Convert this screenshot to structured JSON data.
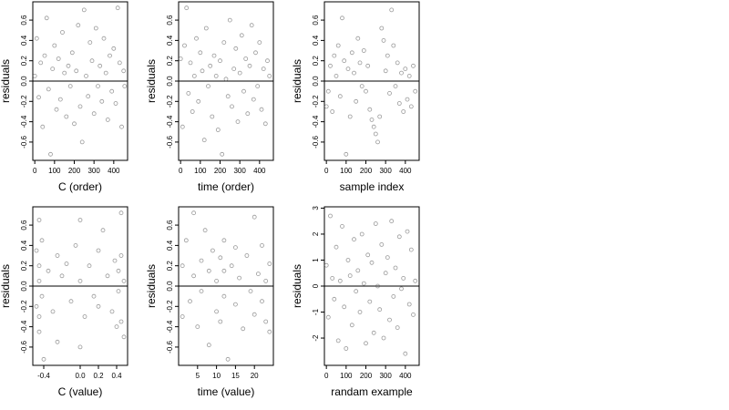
{
  "chart_data": [
    {
      "type": "scatter",
      "xlabel": "C (order)",
      "ylabel": "residuals",
      "xlim": [
        -10,
        470
      ],
      "ylim": [
        -0.78,
        0.78
      ],
      "xticks": [
        0,
        100,
        200,
        300,
        400
      ],
      "xtick_labels": [
        "0",
        "100",
        "200",
        "300",
        "400"
      ],
      "yticks": [
        -0.6,
        -0.4,
        -0.2,
        0.0,
        0.2,
        0.4,
        0.6
      ],
      "ytick_labels": [
        "-0.6",
        "-0.4",
        "-0.2",
        "0.0",
        "0.2",
        "0.4",
        "0.6"
      ],
      "reference_line": 0,
      "points": [
        [
          0,
          0.05
        ],
        [
          10,
          0.42
        ],
        [
          20,
          -0.16
        ],
        [
          30,
          0.18
        ],
        [
          40,
          -0.45
        ],
        [
          50,
          0.25
        ],
        [
          60,
          0.62
        ],
        [
          70,
          -0.08
        ],
        [
          80,
          -0.72
        ],
        [
          90,
          0.12
        ],
        [
          100,
          0.35
        ],
        [
          110,
          -0.28
        ],
        [
          120,
          0.22
        ],
        [
          130,
          -0.18
        ],
        [
          140,
          0.48
        ],
        [
          150,
          0.08
        ],
        [
          160,
          -0.35
        ],
        [
          170,
          0.15
        ],
        [
          180,
          -0.05
        ],
        [
          190,
          0.28
        ],
        [
          200,
          -0.42
        ],
        [
          210,
          0.1
        ],
        [
          220,
          0.55
        ],
        [
          230,
          -0.25
        ],
        [
          240,
          -0.6
        ],
        [
          250,
          0.7
        ],
        [
          260,
          0.05
        ],
        [
          270,
          -0.15
        ],
        [
          280,
          0.38
        ],
        [
          290,
          0.2
        ],
        [
          300,
          -0.32
        ],
        [
          310,
          0.52
        ],
        [
          320,
          -0.05
        ],
        [
          330,
          0.15
        ],
        [
          340,
          -0.2
        ],
        [
          350,
          0.42
        ],
        [
          360,
          0.08
        ],
        [
          370,
          -0.38
        ],
        [
          380,
          0.25
        ],
        [
          390,
          -0.1
        ],
        [
          400,
          0.32
        ],
        [
          410,
          -0.22
        ],
        [
          420,
          0.72
        ],
        [
          430,
          0.18
        ],
        [
          440,
          -0.45
        ],
        [
          450,
          0.1
        ],
        [
          455,
          -0.05
        ]
      ]
    },
    {
      "type": "scatter",
      "xlabel": "time (order)",
      "ylabel": "residuals",
      "xlim": [
        -10,
        470
      ],
      "ylim": [
        -0.78,
        0.78
      ],
      "xticks": [
        0,
        100,
        200,
        300,
        400
      ],
      "xtick_labels": [
        "0",
        "100",
        "200",
        "300",
        "400"
      ],
      "yticks": [
        -0.6,
        -0.4,
        -0.2,
        0.0,
        0.2,
        0.4,
        0.6
      ],
      "ytick_labels": [
        "-0.6",
        "-0.4",
        "-0.2",
        "0.0",
        "0.2",
        "0.4",
        "0.6"
      ],
      "reference_line": 0,
      "points": [
        [
          0,
          0.22
        ],
        [
          10,
          -0.45
        ],
        [
          20,
          0.35
        ],
        [
          30,
          0.72
        ],
        [
          40,
          -0.12
        ],
        [
          50,
          0.18
        ],
        [
          60,
          -0.3
        ],
        [
          70,
          0.05
        ],
        [
          80,
          0.42
        ],
        [
          90,
          -0.2
        ],
        [
          100,
          0.28
        ],
        [
          110,
          0.1
        ],
        [
          120,
          -0.58
        ],
        [
          130,
          0.52
        ],
        [
          140,
          -0.05
        ],
        [
          150,
          0.15
        ],
        [
          160,
          -0.35
        ],
        [
          170,
          0.25
        ],
        [
          180,
          0.05
        ],
        [
          190,
          -0.48
        ],
        [
          200,
          0.2
        ],
        [
          210,
          -0.72
        ],
        [
          220,
          0.38
        ],
        [
          230,
          0.02
        ],
        [
          240,
          -0.15
        ],
        [
          250,
          0.6
        ],
        [
          260,
          -0.25
        ],
        [
          270,
          0.12
        ],
        [
          280,
          0.32
        ],
        [
          290,
          -0.4
        ],
        [
          300,
          0.08
        ],
        [
          310,
          0.45
        ],
        [
          320,
          -0.1
        ],
        [
          330,
          0.22
        ],
        [
          340,
          -0.32
        ],
        [
          350,
          0.15
        ],
        [
          360,
          0.55
        ],
        [
          370,
          -0.18
        ],
        [
          380,
          0.28
        ],
        [
          390,
          -0.05
        ],
        [
          400,
          0.38
        ],
        [
          410,
          -0.28
        ],
        [
          420,
          0.12
        ],
        [
          430,
          -0.42
        ],
        [
          440,
          0.2
        ],
        [
          450,
          0.05
        ]
      ]
    },
    {
      "type": "scatter",
      "xlabel": "sample index",
      "ylabel": "residuals",
      "xlim": [
        -10,
        470
      ],
      "ylim": [
        -0.78,
        0.78
      ],
      "xticks": [
        0,
        100,
        200,
        300,
        400
      ],
      "xtick_labels": [
        "0",
        "100",
        "200",
        "300",
        "400"
      ],
      "yticks": [
        -0.6,
        -0.4,
        -0.2,
        0.0,
        0.2,
        0.4,
        0.6
      ],
      "ytick_labels": [
        "-0.6",
        "-0.4",
        "-0.2",
        "0.0",
        "0.2",
        "0.4",
        "0.6"
      ],
      "reference_line": 0,
      "points": [
        [
          0,
          -0.25
        ],
        [
          10,
          -0.1
        ],
        [
          20,
          0.15
        ],
        [
          30,
          -0.3
        ],
        [
          40,
          0.25
        ],
        [
          50,
          0.05
        ],
        [
          60,
          0.35
        ],
        [
          70,
          -0.15
        ],
        [
          80,
          0.62
        ],
        [
          90,
          0.2
        ],
        [
          100,
          -0.72
        ],
        [
          110,
          0.12
        ],
        [
          120,
          -0.35
        ],
        [
          130,
          0.28
        ],
        [
          140,
          0.08
        ],
        [
          150,
          -0.2
        ],
        [
          160,
          0.42
        ],
        [
          170,
          0.18
        ],
        [
          180,
          -0.05
        ],
        [
          190,
          0.3
        ],
        [
          200,
          -0.1
        ],
        [
          210,
          0.15
        ],
        [
          220,
          -0.28
        ],
        [
          230,
          -0.38
        ],
        [
          240,
          -0.45
        ],
        [
          250,
          -0.52
        ],
        [
          260,
          -0.6
        ],
        [
          270,
          -0.35
        ],
        [
          280,
          0.52
        ],
        [
          290,
          0.4
        ],
        [
          300,
          0.1
        ],
        [
          310,
          0.25
        ],
        [
          320,
          -0.12
        ],
        [
          330,
          0.7
        ],
        [
          340,
          0.35
        ],
        [
          350,
          -0.05
        ],
        [
          360,
          0.18
        ],
        [
          370,
          -0.22
        ],
        [
          380,
          0.08
        ],
        [
          390,
          -0.3
        ],
        [
          400,
          0.12
        ],
        [
          410,
          -0.18
        ],
        [
          420,
          0.05
        ],
        [
          430,
          -0.25
        ],
        [
          440,
          0.15
        ],
        [
          450,
          -0.1
        ]
      ]
    },
    {
      "type": "scatter",
      "xlabel": "C (value)",
      "ylabel": "residuals",
      "xlim": [
        -0.52,
        0.52
      ],
      "ylim": [
        -0.78,
        0.78
      ],
      "xticks": [
        -0.4,
        0.0,
        0.2,
        0.4
      ],
      "xtick_labels": [
        "-0.4",
        "0.0",
        "0.2",
        "0.4"
      ],
      "yticks": [
        -0.6,
        -0.4,
        -0.2,
        0.0,
        0.2,
        0.4,
        0.6
      ],
      "ytick_labels": [
        "-0.6",
        "-0.4",
        "-0.2",
        "0.0",
        "0.2",
        "0.4",
        "0.6"
      ],
      "reference_line": 0,
      "points": [
        [
          -0.48,
          0.35
        ],
        [
          -0.48,
          -0.2
        ],
        [
          -0.45,
          0.65
        ],
        [
          -0.45,
          -0.45
        ],
        [
          -0.45,
          0.2
        ],
        [
          -0.45,
          0.05
        ],
        [
          -0.45,
          -0.3
        ],
        [
          -0.42,
          0.45
        ],
        [
          -0.42,
          -0.1
        ],
        [
          -0.4,
          -0.72
        ],
        [
          -0.35,
          0.15
        ],
        [
          -0.3,
          -0.25
        ],
        [
          -0.25,
          0.3
        ],
        [
          -0.25,
          -0.55
        ],
        [
          -0.2,
          0.1
        ],
        [
          -0.15,
          0.22
        ],
        [
          -0.1,
          -0.15
        ],
        [
          -0.05,
          0.4
        ],
        [
          0.0,
          0.65
        ],
        [
          0.0,
          -0.6
        ],
        [
          0.0,
          0.05
        ],
        [
          0.05,
          -0.3
        ],
        [
          0.1,
          0.2
        ],
        [
          0.15,
          -0.1
        ],
        [
          0.2,
          0.35
        ],
        [
          0.2,
          -0.2
        ],
        [
          0.25,
          0.55
        ],
        [
          0.3,
          0.1
        ],
        [
          0.35,
          -0.25
        ],
        [
          0.38,
          0.25
        ],
        [
          0.4,
          -0.4
        ],
        [
          0.42,
          0.15
        ],
        [
          0.42,
          -0.05
        ],
        [
          0.45,
          0.72
        ],
        [
          0.45,
          0.3
        ],
        [
          0.45,
          -0.35
        ],
        [
          0.48,
          0.05
        ],
        [
          0.48,
          -0.5
        ]
      ]
    },
    {
      "type": "scatter",
      "xlabel": "time (value)",
      "ylabel": "residuals",
      "xlim": [
        0,
        25
      ],
      "ylim": [
        -0.78,
        0.78
      ],
      "xticks": [
        5,
        10,
        15,
        20
      ],
      "xtick_labels": [
        "5",
        "10",
        "15",
        "20"
      ],
      "yticks": [
        -0.6,
        -0.4,
        -0.2,
        0.0,
        0.2,
        0.4,
        0.6
      ],
      "ytick_labels": [
        "-0.6",
        "-0.4",
        "-0.2",
        "0.0",
        "0.2",
        "0.4",
        "0.6"
      ],
      "reference_line": 0,
      "points": [
        [
          1,
          0.2
        ],
        [
          1,
          -0.3
        ],
        [
          2,
          0.45
        ],
        [
          3,
          -0.15
        ],
        [
          4,
          0.72
        ],
        [
          4,
          0.1
        ],
        [
          5,
          -0.4
        ],
        [
          6,
          0.25
        ],
        [
          6,
          -0.05
        ],
        [
          7,
          0.55
        ],
        [
          8,
          -0.58
        ],
        [
          8,
          0.15
        ],
        [
          9,
          0.35
        ],
        [
          10,
          -0.25
        ],
        [
          10,
          0.05
        ],
        [
          11,
          0.28
        ],
        [
          11,
          -0.35
        ],
        [
          12,
          0.15
        ],
        [
          12,
          -0.1
        ],
        [
          12,
          0.45
        ],
        [
          13,
          -0.72
        ],
        [
          14,
          0.2
        ],
        [
          15,
          -0.18
        ],
        [
          15,
          0.38
        ],
        [
          16,
          0.08
        ],
        [
          17,
          -0.42
        ],
        [
          18,
          0.3
        ],
        [
          19,
          -0.05
        ],
        [
          20,
          0.68
        ],
        [
          20,
          -0.28
        ],
        [
          21,
          0.12
        ],
        [
          22,
          -0.15
        ],
        [
          22,
          0.4
        ],
        [
          23,
          0.05
        ],
        [
          23,
          -0.35
        ],
        [
          24,
          0.22
        ],
        [
          24,
          -0.45
        ]
      ]
    },
    {
      "type": "scatter",
      "xlabel": "randam example",
      "ylabel": "residuals",
      "xlim": [
        -10,
        470
      ],
      "ylim": [
        -3.05,
        3.05
      ],
      "xticks": [
        0,
        100,
        200,
        300,
        400
      ],
      "xtick_labels": [
        "0",
        "100",
        "200",
        "300",
        "400"
      ],
      "yticks": [
        -2,
        -1,
        0,
        1,
        2,
        3
      ],
      "ytick_labels": [
        "-2",
        "-1",
        "0",
        "1",
        "2",
        "3"
      ],
      "reference_line": 0,
      "points": [
        [
          0,
          0.8
        ],
        [
          10,
          -1.2
        ],
        [
          20,
          2.7
        ],
        [
          30,
          0.3
        ],
        [
          40,
          -0.5
        ],
        [
          50,
          1.5
        ],
        [
          60,
          -2.1
        ],
        [
          70,
          0.2
        ],
        [
          80,
          2.3
        ],
        [
          90,
          -0.8
        ],
        [
          100,
          -2.4
        ],
        [
          110,
          1.0
        ],
        [
          120,
          0.4
        ],
        [
          130,
          -1.5
        ],
        [
          140,
          1.8
        ],
        [
          150,
          -0.2
        ],
        [
          160,
          0.6
        ],
        [
          170,
          -1.0
        ],
        [
          180,
          2.0
        ],
        [
          190,
          0.1
        ],
        [
          200,
          -2.2
        ],
        [
          210,
          1.2
        ],
        [
          220,
          -0.6
        ],
        [
          230,
          0.9
        ],
        [
          240,
          -1.8
        ],
        [
          250,
          2.4
        ],
        [
          260,
          0.0
        ],
        [
          270,
          -0.9
        ],
        [
          280,
          1.6
        ],
        [
          290,
          -2.0
        ],
        [
          300,
          0.5
        ],
        [
          310,
          1.1
        ],
        [
          320,
          -1.3
        ],
        [
          330,
          2.5
        ],
        [
          340,
          -0.4
        ],
        [
          350,
          0.7
        ],
        [
          360,
          -1.6
        ],
        [
          370,
          1.9
        ],
        [
          380,
          -0.1
        ],
        [
          390,
          0.3
        ],
        [
          400,
          -2.6
        ],
        [
          410,
          2.1
        ],
        [
          420,
          -0.7
        ],
        [
          430,
          1.4
        ],
        [
          440,
          -1.1
        ],
        [
          450,
          0.2
        ]
      ]
    }
  ]
}
